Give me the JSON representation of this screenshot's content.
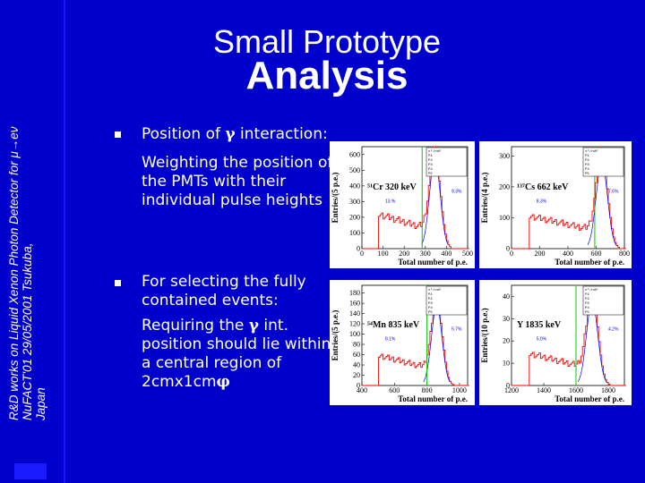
{
  "sidebar": {
    "line1": "R&D works on Liquid Xenon Photon Detector for μ→eν",
    "line2": "NuFACT'01  29/05/2001 Tsukuba,",
    "line3": "Japan"
  },
  "title": {
    "line1": "Small Prototype",
    "line2": "Analysis"
  },
  "bullets": [
    {
      "head_text": "Position of ",
      "head_symbol": "γ",
      "head_rest": " interaction:",
      "sub": [
        "Weighting the position of",
        "the PMTs with their",
        "individual pulse heights"
      ]
    },
    {
      "head_lines": [
        "For selecting the fully",
        "contained events:"
      ],
      "sub_line1_text": "Requiring the ",
      "sub_line1_symbol": "γ",
      "sub_line1_rest": " int.",
      "sub": [
        "position should lie within",
        "a central region of"
      ],
      "sub_last_text": "2cmx1cm",
      "sub_last_symbol": "φ"
    }
  ],
  "chart_data": [
    {
      "type": "histogram",
      "source": "⁵¹Cr 320 keV",
      "xlabel": "Total number of p.e.",
      "ylabel": "Entries/(5 p.e.)",
      "x_ticks": [
        "0",
        "100",
        "200",
        "300",
        "400",
        "500"
      ],
      "y_ticks": [
        "0",
        "100",
        "200",
        "300",
        "400",
        "500",
        "600"
      ],
      "xlim": [
        0,
        500
      ],
      "ylim": [
        0,
        650
      ],
      "peak_x": 345,
      "peak_y": 580,
      "cut_x": 285,
      "resolutions": [
        "13.%",
        "9.3%"
      ],
      "stats": [
        "x²/ndf",
        "P1",
        "P2",
        "P3",
        "P4",
        "P5"
      ]
    },
    {
      "type": "histogram",
      "source": "¹³⁷Cs 662 keV",
      "xlabel": "Total number of p.e.",
      "ylabel": "Entries/(4 p.e.)",
      "x_ticks": [
        "0",
        "200",
        "400",
        "600",
        "800"
      ],
      "y_ticks": [
        "0",
        "100",
        "200",
        "300"
      ],
      "xlim": [
        0,
        800
      ],
      "ylim": [
        0,
        330
      ],
      "peak_x": 640,
      "peak_y": 280,
      "cut_x": 590,
      "resolutions": [
        "8.3%",
        "7.6%"
      ],
      "stats": [
        "x²/ndf",
        "P1",
        "P2",
        "P3",
        "P4",
        "P5"
      ]
    },
    {
      "type": "histogram",
      "source": "⁵⁴Mn 835 keV",
      "xlabel": "Total number of p.e.",
      "ylabel": "Entries/(5 p.e.)",
      "x_ticks": [
        "400",
        "600",
        "800",
        "1000"
      ],
      "y_ticks": [
        "0",
        "20",
        "40",
        "60",
        "80",
        "100",
        "120",
        "140",
        "160",
        "180"
      ],
      "xlim": [
        400,
        1050
      ],
      "ylim": [
        0,
        195
      ],
      "peak_x": 860,
      "peak_y": 155,
      "cut_x": 800,
      "resolutions": [
        "8.1%",
        "5.7%"
      ],
      "stats": [
        "x²/ndf",
        "P1",
        "P2",
        "P3",
        "P4",
        "P5"
      ]
    },
    {
      "type": "histogram",
      "source": "Y 1835 keV",
      "xlabel": "Total number of p.e.",
      "ylabel": "Entries/(10 p.e.)",
      "x_ticks": [
        "1200",
        "1400",
        "1600",
        "1800"
      ],
      "y_ticks": [
        "0",
        "10",
        "20",
        "30",
        "40"
      ],
      "xlim": [
        1200,
        1900
      ],
      "ylim": [
        0,
        45
      ],
      "peak_x": 1700,
      "peak_y": 38,
      "cut_x": 1600,
      "resolutions": [
        "5.0%",
        "4.2%"
      ],
      "stats": [
        "x²/ndf",
        "P1",
        "P2",
        "P3",
        "P4",
        "P5"
      ]
    }
  ],
  "colors": {
    "background": "#0000cc",
    "histogram": "#ff0000",
    "cut_line": "#00cc00",
    "fit": "#0000ff"
  }
}
